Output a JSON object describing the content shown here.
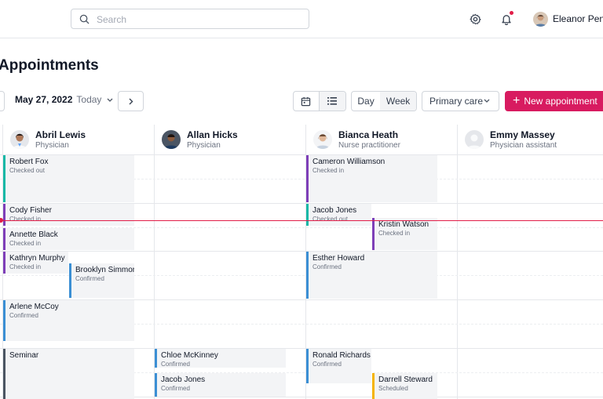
{
  "search": {
    "placeholder": "Search"
  },
  "user": {
    "name": "Eleanor Pena"
  },
  "page": {
    "title": "Appointments"
  },
  "toolbar": {
    "date": "May 27, 2022",
    "today": "Today",
    "views": [
      "Day",
      "Week"
    ],
    "active_view": "Week",
    "department": "Primary care",
    "new_label": "New appointment"
  },
  "providers": [
    {
      "name": "Abril Lewis",
      "role": "Physician"
    },
    {
      "name": "Allan Hicks",
      "role": "Physician"
    },
    {
      "name": "Bianca Heath",
      "role": "Nurse practitioner"
    },
    {
      "name": "Emmy Massey",
      "role": "Physician assistant"
    }
  ],
  "appointments": [
    {
      "name": "Robert Fox",
      "status": "Checked out",
      "color": "#14b8a6"
    },
    {
      "name": "Cody Fisher",
      "status": "Checked in",
      "color": "#7e3fb8"
    },
    {
      "name": "Annette Black",
      "status": "Checked in",
      "color": "#7e3fb8"
    },
    {
      "name": "Kathryn Murphy",
      "status": "Checked in",
      "color": "#7e3fb8"
    },
    {
      "name": "Brooklyn Simmons",
      "status": "Confirmed",
      "color": "#3b8fd4"
    },
    {
      "name": "Arlene McCoy",
      "status": "Confirmed",
      "color": "#3b8fd4"
    },
    {
      "name": "Seminar",
      "status": "",
      "color": "#4b5563"
    },
    {
      "name": "Chloe McKinney",
      "status": "Confirmed",
      "color": "#3b8fd4"
    },
    {
      "name": "Jacob Jones",
      "status": "Confirmed",
      "color": "#3b8fd4"
    },
    {
      "name": "Cameron Williamson",
      "status": "Checked in",
      "color": "#7e3fb8"
    },
    {
      "name": "Jacob Jones",
      "status": "Checked out",
      "color": "#14b8a6"
    },
    {
      "name": "Kristin Watson",
      "status": "Checked in",
      "color": "#7e3fb8"
    },
    {
      "name": "Esther Howard",
      "status": "Confirmed",
      "color": "#3b8fd4"
    },
    {
      "name": "Ronald Richards",
      "status": "Confirmed",
      "color": "#3b8fd4"
    },
    {
      "name": "Darrell Steward",
      "status": "Scheduled",
      "color": "#f5b400"
    }
  ],
  "icons": {
    "search": "search-icon",
    "settings": "gear-icon",
    "notifications": "bell-icon",
    "prev": "chevron-left-icon",
    "next": "chevron-right-icon",
    "calendar_view": "calendar-icon",
    "list_view": "list-icon",
    "dropdown": "chevron-down-icon",
    "add": "plus-icon"
  },
  "colors": {
    "accent": "#d81b60",
    "now_line": "#e11d48"
  }
}
